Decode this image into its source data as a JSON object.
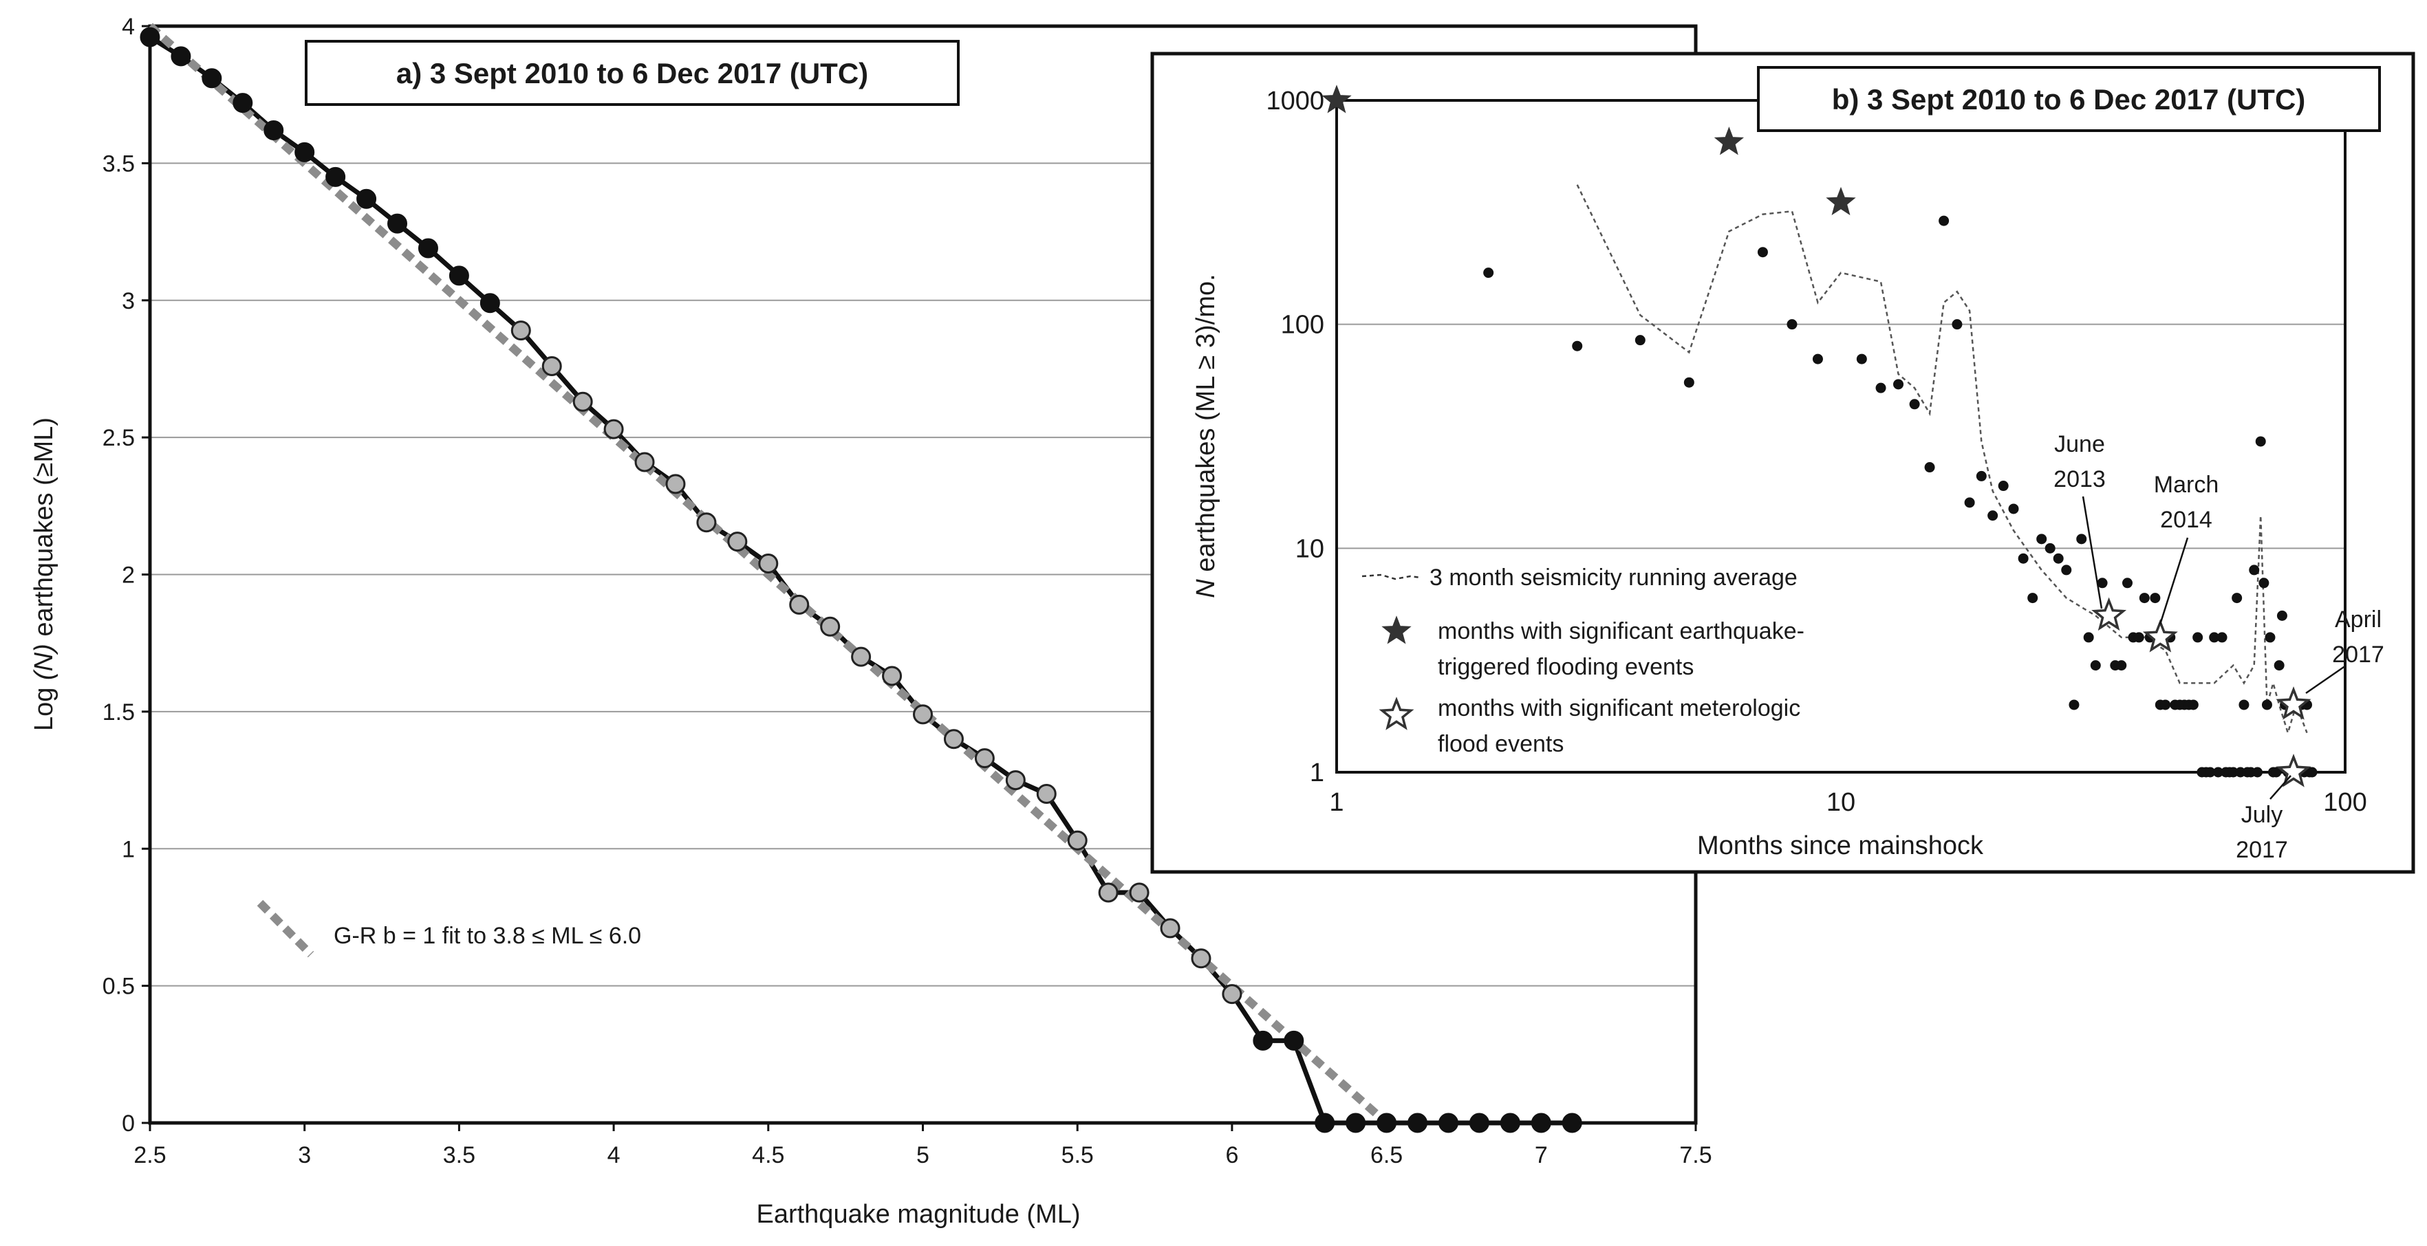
{
  "chart_data": [
    {
      "type": "line",
      "title": "a) 3 Sept 2010 to 6 Dec 2017 (UTC)",
      "xlabel": "Earthquake magnitude (ML)",
      "ylabel": "Log (N) earthquakes (≥ML)",
      "ylabel_parts": {
        "pre": "Log ",
        "italic": "(N)",
        "post": " earthquakes (≥ML)"
      },
      "xlim": [
        2.5,
        7.5
      ],
      "ylim": [
        0,
        4
      ],
      "x_ticks": [
        "2.5",
        "3",
        "3.5",
        "4",
        "4.5",
        "5",
        "5.5",
        "6",
        "6.5",
        "7",
        "7.5"
      ],
      "y_ticks": [
        "0",
        "0.5",
        "1",
        "1.5",
        "2",
        "2.5",
        "3",
        "3.5",
        "4"
      ],
      "grid": "horizontal",
      "series": [
        {
          "role": "observed",
          "color": "#111111",
          "light_marker_color": "#b4b4b4",
          "light_from": 3.7,
          "light_to": 6.0,
          "x": [
            2.5,
            2.6,
            2.7,
            2.8,
            2.9,
            3.0,
            3.1,
            3.2,
            3.3,
            3.4,
            3.5,
            3.6,
            3.7,
            3.8,
            3.9,
            4.0,
            4.1,
            4.2,
            4.3,
            4.4,
            4.5,
            4.6,
            4.7,
            4.8,
            4.9,
            5.0,
            5.1,
            5.2,
            5.3,
            5.4,
            5.5,
            5.6,
            5.7,
            5.8,
            5.9,
            6.0,
            6.1,
            6.2,
            6.3,
            6.4,
            6.5,
            6.6,
            6.7,
            6.8,
            6.9,
            7.0,
            7.1
          ],
          "y": [
            3.96,
            3.89,
            3.81,
            3.72,
            3.62,
            3.54,
            3.45,
            3.37,
            3.28,
            3.19,
            3.09,
            2.99,
            2.89,
            2.76,
            2.63,
            2.53,
            2.41,
            2.33,
            2.19,
            2.12,
            2.04,
            1.89,
            1.81,
            1.7,
            1.63,
            1.49,
            1.4,
            1.33,
            1.25,
            1.2,
            1.03,
            0.84,
            0.84,
            0.71,
            0.6,
            0.47,
            0.3,
            0.3,
            0,
            0,
            0,
            0,
            0,
            0,
            0,
            0,
            0
          ]
        },
        {
          "role": "fit",
          "name": "G-R  b = 1 fit to 3.8 ≤ ML ≤ 6.0",
          "color": "#8c8c8c",
          "x": [
            2.5,
            6.5
          ],
          "y": [
            4.0,
            0.0
          ]
        }
      ]
    },
    {
      "type": "scatter",
      "title": "b) 3 Sept 2010 to 6 Dec 2017 (UTC)",
      "xlabel": "Months since mainshock",
      "ylabel": "N earthquakes (ML ≥ 3)/mo.",
      "ylabel_parts": {
        "italic": "N",
        "post": " earthquakes (ML ≥ 3)/mo."
      },
      "xscale": "log",
      "yscale": "log",
      "xlim": [
        1,
        100
      ],
      "ylim": [
        1,
        1000
      ],
      "x_ticks": [
        "1",
        "10",
        "100"
      ],
      "y_ticks": [
        "1",
        "10",
        "100",
        "1000"
      ],
      "grid": "horizontal",
      "legend": [
        "3 month seismicity running average",
        "months with significant earthquake-",
        "triggered flooding events",
        "months with significant meterologic",
        "flood events"
      ],
      "legend_position": "bottom-left",
      "series": [
        {
          "role": "monthly",
          "color": "#111111",
          "x": [
            2,
            3,
            4,
            5,
            7,
            8,
            9,
            11,
            12,
            13,
            14,
            15,
            16,
            17,
            18,
            19,
            20,
            21,
            22,
            23,
            24,
            25,
            26,
            27,
            28,
            29,
            30,
            31,
            32,
            33,
            34,
            35,
            36,
            37,
            38,
            39,
            40,
            41,
            42,
            43,
            44,
            45,
            46,
            47,
            48,
            49,
            50,
            51,
            52,
            53,
            54,
            55,
            56,
            57,
            58,
            59,
            60,
            61,
            62,
            63,
            64,
            65,
            66,
            67,
            68,
            69,
            70,
            71,
            72,
            73,
            74,
            75,
            76,
            77,
            78,
            79,
            80,
            81,
            82,
            83,
            84,
            85,
            86
          ],
          "y": [
            170,
            80,
            85,
            55,
            210,
            100,
            70,
            70,
            52,
            54,
            44,
            23,
            290,
            100,
            16,
            21,
            14,
            19,
            15,
            9,
            6,
            11,
            10,
            9,
            8,
            2,
            11,
            4,
            3,
            7,
            5,
            3,
            3,
            7,
            4,
            4,
            6,
            4,
            6,
            2,
            2,
            4,
            2,
            2,
            2,
            2,
            2,
            4,
            1,
            1,
            1,
            4,
            1,
            4,
            1,
            1,
            1,
            6,
            1,
            2,
            1,
            1,
            8,
            1,
            30,
            7,
            2,
            4,
            1,
            1,
            3,
            5,
            2,
            1,
            1,
            1,
            2,
            1,
            2,
            1,
            2,
            1,
            1
          ]
        },
        {
          "role": "running_average",
          "name": "3 month seismicity running average",
          "color": "#555555",
          "x": [
            3,
            4,
            5,
            6,
            7,
            8,
            9,
            10,
            12,
            13,
            14,
            15,
            16,
            17,
            18,
            19,
            20,
            22,
            25,
            28,
            32,
            36,
            40,
            44,
            47,
            50,
            55,
            60,
            63,
            66,
            68,
            70,
            72,
            74,
            77,
            80,
            84
          ],
          "y": [
            420,
            110,
            75,
            260,
            310,
            320,
            125,
            170,
            155,
            60,
            52,
            40,
            125,
            140,
            115,
            30,
            18,
            12,
            8,
            6,
            5,
            4,
            4,
            3.5,
            2.5,
            2.5,
            2.5,
            3,
            2.5,
            3,
            14,
            2,
            2.5,
            2,
            1.5,
            2,
            1.5
          ]
        },
        {
          "role": "earthquake_flood",
          "name": "months with significant earthquake-triggered flooding events",
          "color": "#333333",
          "x": [
            1,
            6,
            10
          ],
          "y": [
            1000,
            650,
            350
          ]
        },
        {
          "role": "meteorologic_flood",
          "name": "months with significant meterologic flood events",
          "color": "#333333",
          "x": [
            34,
            43,
            79,
            79
          ],
          "y": [
            5,
            4,
            2,
            1
          ]
        }
      ],
      "annotations": [
        {
          "lines": [
            "June",
            "2013"
          ],
          "target_x": 34,
          "target_y": 5
        },
        {
          "lines": [
            "March",
            "2014"
          ],
          "target_x": 43,
          "target_y": 4
        },
        {
          "lines": [
            "April",
            "2017"
          ],
          "target_x": 79,
          "target_y": 2
        },
        {
          "lines": [
            "July",
            "2017"
          ],
          "target_x": 79,
          "target_y": 1
        }
      ]
    }
  ]
}
